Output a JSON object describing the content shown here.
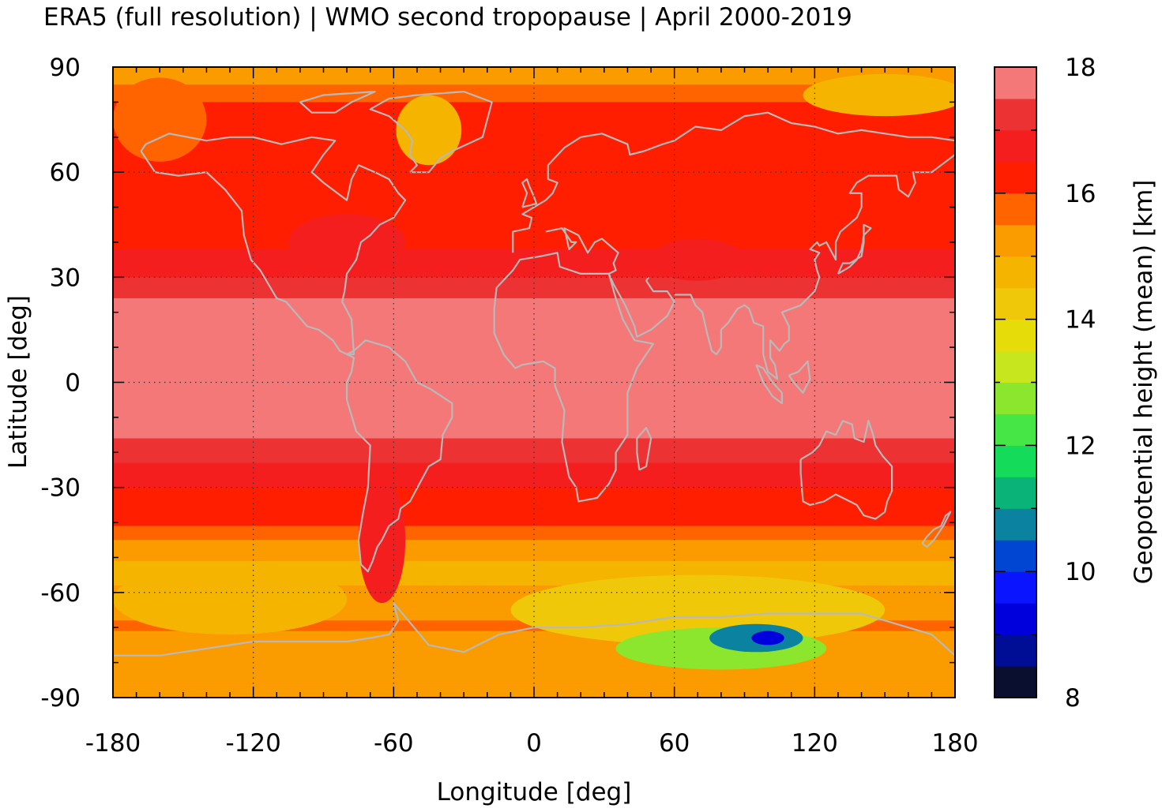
{
  "chart_data": {
    "type": "heatmap",
    "title": "ERA5 (full resolution) | WMO second tropopause | April 2000-2019",
    "xlabel": "Longitude [deg]",
    "ylabel": "Latitude [deg]",
    "xlim": [
      -180,
      180
    ],
    "ylim": [
      -90,
      90
    ],
    "xticks": [
      -180,
      -120,
      -60,
      0,
      60,
      120,
      180
    ],
    "yticks": [
      -90,
      -60,
      -30,
      0,
      30,
      60,
      90
    ],
    "grid": true,
    "colorbar": {
      "label": "Geopotential height (mean) [km]",
      "min": 8,
      "max": 18,
      "step": 0.5,
      "ticks": [
        8,
        10,
        12,
        14,
        16,
        18
      ],
      "colors": [
        "#0a0f30",
        "#000e96",
        "#0000dc",
        "#0a14ff",
        "#0046d2",
        "#0a82a0",
        "#0ab478",
        "#14dc5a",
        "#46e646",
        "#8ce62d",
        "#c8e61e",
        "#e6dc0a",
        "#f0c80a",
        "#f5b400",
        "#fa9b00",
        "#ff6400",
        "#ff1e00",
        "#f51e1e",
        "#ec3232",
        "#f57878",
        "#ffcaca"
      ]
    },
    "bands": [
      {
        "lat": 90,
        "value": 15.0
      },
      {
        "lat": 80,
        "value": 16.0
      },
      {
        "lat": 70,
        "value": 16.2
      },
      {
        "lat": 60,
        "value": 16.3
      },
      {
        "lat": 50,
        "value": 16.3
      },
      {
        "lat": 40,
        "value": 16.4
      },
      {
        "lat": 32,
        "value": 16.8
      },
      {
        "lat": 26,
        "value": 17.3
      },
      {
        "lat": 20,
        "value": 17.8
      },
      {
        "lat": 0,
        "value": 17.9
      },
      {
        "lat": -12,
        "value": 17.8
      },
      {
        "lat": -20,
        "value": 17.2
      },
      {
        "lat": -26,
        "value": 16.8
      },
      {
        "lat": -33,
        "value": 16.3
      },
      {
        "lat": -40,
        "value": 16.2
      },
      {
        "lat": -46,
        "value": 15.3
      },
      {
        "lat": -55,
        "value": 14.8
      },
      {
        "lat": -62,
        "value": 15.2
      },
      {
        "lat": -70,
        "value": 15.6
      },
      {
        "lat": -78,
        "value": 15.0
      },
      {
        "lat": -90,
        "value": 15.0
      }
    ],
    "features": [
      {
        "lon": -45,
        "lat": 72,
        "rlon": 14,
        "rlat": 10,
        "value": 14.5
      },
      {
        "lon": -160,
        "lat": 75,
        "rlon": 20,
        "rlat": 12,
        "value": 15.8
      },
      {
        "lon": 150,
        "lat": 82,
        "rlon": 35,
        "rlat": 6,
        "value": 14.8
      },
      {
        "lon": -65,
        "lat": -45,
        "rlon": 10,
        "rlat": 18,
        "value": 16.8
      },
      {
        "lon": -130,
        "lat": -62,
        "rlon": 50,
        "rlat": 10,
        "value": 14.6
      },
      {
        "lon": 70,
        "lat": -65,
        "rlon": 80,
        "rlat": 10,
        "value": 14.2
      },
      {
        "lon": 80,
        "lat": -76,
        "rlon": 45,
        "rlat": 6,
        "value": 12.5
      },
      {
        "lon": 95,
        "lat": -73,
        "rlon": 20,
        "rlat": 4,
        "value": 10.5
      },
      {
        "lon": 100,
        "lat": -73,
        "rlon": 7,
        "rlat": 2,
        "value": 9.3
      },
      {
        "lon": -80,
        "lat": 40,
        "rlon": 25,
        "rlat": 8,
        "value": 16.5
      },
      {
        "lon": 70,
        "lat": 35,
        "rlon": 20,
        "rlat": 6,
        "value": 16.9
      }
    ]
  }
}
